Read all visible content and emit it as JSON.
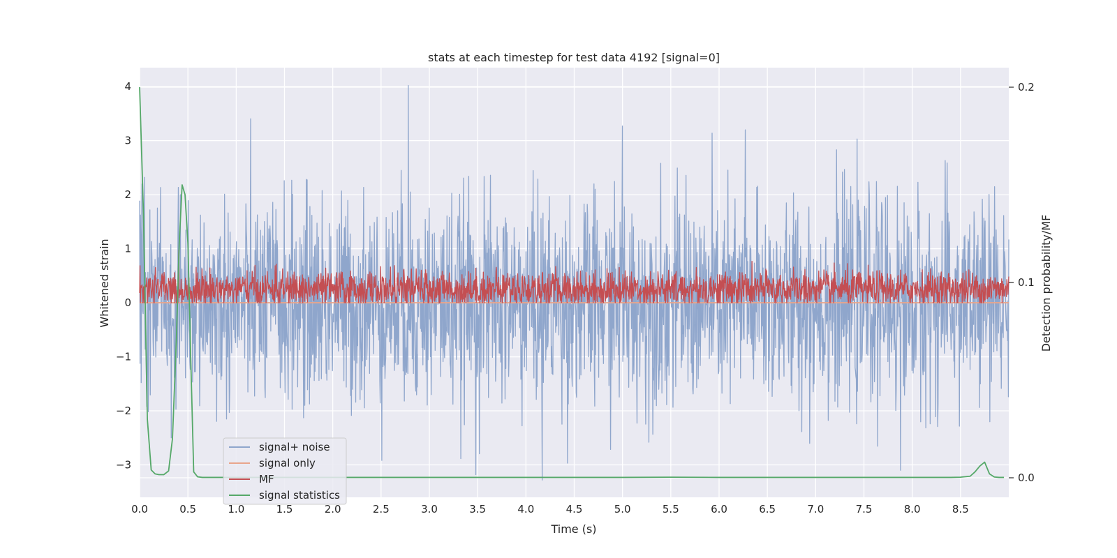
{
  "chart_data": {
    "type": "line",
    "title": "stats at each timestep for test data 4192 [signal=0]",
    "xlabel": "Time (s)",
    "ylabel": "Whitened strain",
    "ylabel_right": "Detection probability/MF",
    "xlim": [
      0.0,
      9.0
    ],
    "ylim": [
      -3.6,
      4.35
    ],
    "ylim_right": [
      -0.01,
      0.21
    ],
    "x_ticks": [
      "0.0",
      "0.5",
      "1.0",
      "1.5",
      "2.0",
      "2.5",
      "3.0",
      "3.5",
      "4.0",
      "4.5",
      "5.0",
      "5.5",
      "6.0",
      "6.5",
      "7.0",
      "7.5",
      "8.0",
      "8.5"
    ],
    "x_tick_values": [
      0.0,
      0.5,
      1.0,
      1.5,
      2.0,
      2.5,
      3.0,
      3.5,
      4.0,
      4.5,
      5.0,
      5.5,
      6.0,
      6.5,
      7.0,
      7.5,
      8.0,
      8.5
    ],
    "y_ticks": [
      "−3",
      "−2",
      "−1",
      "0",
      "1",
      "2",
      "3",
      "4"
    ],
    "y_tick_values": [
      -3,
      -2,
      -1,
      0,
      1,
      2,
      3,
      4
    ],
    "y_ticks_right": [
      "0.0",
      "0.1",
      "0.2"
    ],
    "y_tick_values_right": [
      0.0,
      0.1,
      0.2
    ],
    "grid": true,
    "legend_position": "lower-left",
    "series": [
      {
        "name": "signal+ noise",
        "color": "#8fa6cc",
        "axis": "left",
        "style": "dense-noise",
        "samples": 2200,
        "amplitude_std": 0.95,
        "spikes": [
          [
            2.78,
            4.02
          ],
          [
            4.17,
            -3.28
          ],
          [
            3.48,
            -3.18
          ],
          [
            5.0,
            3.27
          ],
          [
            6.27,
            3.2
          ],
          [
            7.88,
            -3.1
          ],
          [
            0.42,
            2.0
          ],
          [
            0.05,
            2.32
          ]
        ],
        "x_range": [
          0.0,
          9.0
        ]
      },
      {
        "name": "signal only",
        "color": "#e9a58b",
        "axis": "left",
        "style": "flat",
        "x": [
          0.0,
          9.0
        ],
        "y": [
          0.0,
          0.0
        ]
      },
      {
        "name": "MF",
        "color": "#c44e52",
        "axis": "left",
        "style": "dense-noise",
        "samples": 2200,
        "center": 0.25,
        "amplitude_std": 0.17,
        "y_min": 0.0,
        "y_max": 0.98,
        "x_range": [
          0.0,
          9.0
        ]
      },
      {
        "name": "signal statistics",
        "color": "#55a868",
        "axis": "right",
        "style": "line",
        "x": [
          0.0,
          0.04,
          0.08,
          0.12,
          0.16,
          0.2,
          0.25,
          0.3,
          0.34,
          0.38,
          0.41,
          0.44,
          0.47,
          0.5,
          0.53,
          0.56,
          0.6,
          0.65,
          0.75,
          1.0,
          2.0,
          3.0,
          4.0,
          5.0,
          5.5,
          6.0,
          7.0,
          8.0,
          8.4,
          8.5,
          8.6,
          8.65,
          8.7,
          8.75,
          8.8,
          8.85,
          8.9,
          8.95
        ],
        "y": [
          0.2,
          0.135,
          0.03,
          0.004,
          0.002,
          0.0016,
          0.0016,
          0.0035,
          0.02,
          0.07,
          0.12,
          0.15,
          0.145,
          0.12,
          0.06,
          0.003,
          0.0005,
          0.0002,
          0.0002,
          0.0002,
          0.0002,
          0.0002,
          0.0002,
          0.0002,
          0.0003,
          0.0002,
          0.0002,
          0.0002,
          0.0002,
          0.0003,
          0.0008,
          0.003,
          0.006,
          0.008,
          0.002,
          0.0004,
          0.0002,
          0.0002
        ]
      }
    ]
  }
}
